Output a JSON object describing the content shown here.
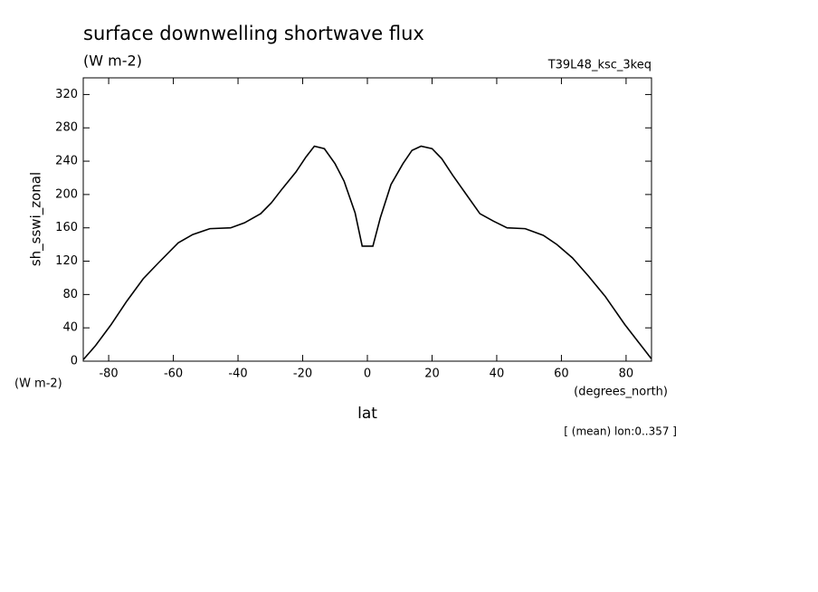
{
  "chart_data": {
    "type": "line",
    "title": "surface downwelling shortwave flux",
    "subtitle": "(W m-2)",
    "dataset": "T39L48_ksc_3keq",
    "y_label": "sh_sswi_zonal",
    "y_units": "(W m-2)",
    "x_units": "(degrees_north)",
    "x_label": "lat",
    "note": "[ (mean) lon:0..357 ]",
    "x": [
      -87.8,
      -84.2,
      -79.4,
      -74.4,
      -69.3,
      -64.6,
      -58.5,
      -54,
      -48.7,
      -42.3,
      -38,
      -33,
      -29.7,
      -26.3,
      -22.1,
      -19,
      -16.4,
      -13.3,
      -10,
      -7.2,
      -3.8,
      -1.6,
      1.7,
      4,
      7.3,
      11,
      13.8,
      16.6,
      20,
      23,
      26.4,
      30.6,
      34.8,
      39,
      43.2,
      48.8,
      54.4,
      58.6,
      63.4,
      68.4,
      73.5,
      79.6,
      83.8,
      87.8
    ],
    "series": [
      {
        "name": "sh_sswi_zonal",
        "color": "#000000",
        "values": [
          2,
          18,
          43,
          72,
          99,
          118,
          142,
          152,
          159,
          160,
          166,
          177,
          190,
          207,
          227,
          245,
          258,
          255,
          237,
          216,
          178,
          138,
          138,
          172,
          212,
          237,
          253,
          258,
          255,
          243,
          223,
          200,
          177,
          168,
          160,
          159,
          151,
          140,
          124,
          102,
          78,
          44,
          23,
          3
        ]
      }
    ],
    "xlim": [
      -87.86,
      87.86
    ],
    "ylim": [
      0,
      340
    ],
    "xticks": [
      -80,
      -60,
      -40,
      -20,
      0,
      20,
      40,
      60,
      80
    ],
    "yticks": [
      0,
      40,
      80,
      120,
      160,
      200,
      240,
      280,
      320
    ],
    "grid": false
  }
}
